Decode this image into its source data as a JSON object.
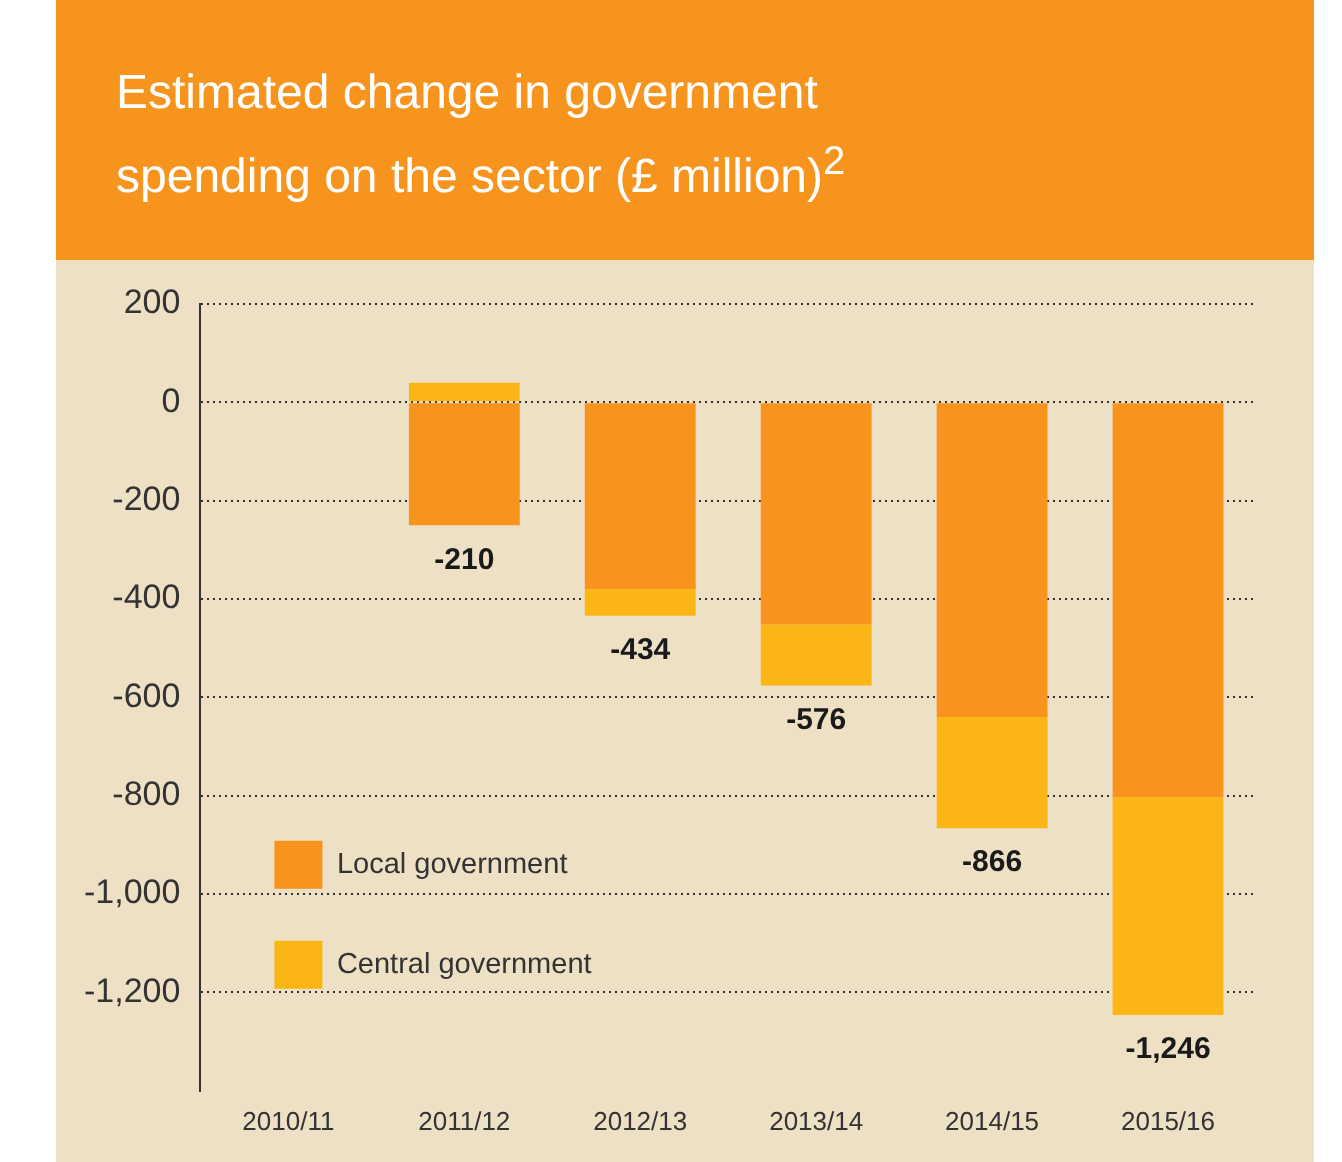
{
  "chart_data": {
    "type": "bar",
    "title": "Estimated change in government spending on the sector (£ million)$^{2}$",
    "categories": [
      "2010/11",
      "2011/12",
      "2012/13",
      "2013/14",
      "2014/15",
      "2015/16"
    ],
    "series": [
      {
        "name": "Local government",
        "color": "#f7941e",
        "values": [
          null,
          -250,
          -380,
          -452,
          -640,
          -803
        ]
      },
      {
        "name": "Central government",
        "color": "#fbb615",
        "values": [
          null,
          40,
          -54,
          -124,
          -226,
          -443
        ]
      }
    ],
    "stacked": true,
    "totals": [
      null,
      "-210",
      "-434",
      "-576",
      "-866",
      "-1,246"
    ],
    "ylim": [
      -1400,
      200
    ],
    "yticks": [
      {
        "value": 200,
        "label": "200"
      },
      {
        "value": 0,
        "label": "0"
      },
      {
        "value": -200,
        "label": "-200"
      },
      {
        "value": -400,
        "label": "-400"
      },
      {
        "value": -600,
        "label": "-600"
      },
      {
        "value": -800,
        "label": "-800"
      },
      {
        "value": -1000,
        "label": "-1,000"
      },
      {
        "value": -1200,
        "label": "-1,200"
      }
    ],
    "grid": "y",
    "legend": "bottom left"
  }
}
